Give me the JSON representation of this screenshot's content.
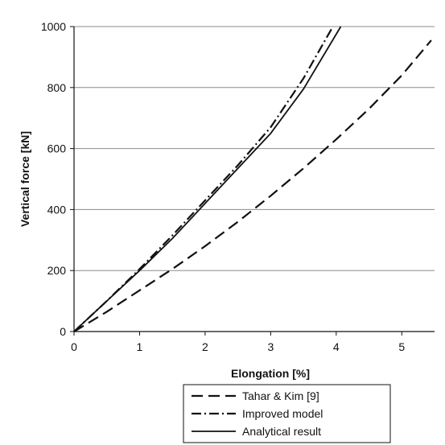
{
  "chart_data": {
    "type": "line",
    "title": "",
    "xlabel": "Elongation [%]",
    "ylabel": "Vertical force [kN]",
    "xlim": [
      0,
      5.5
    ],
    "ylim": [
      0,
      1000
    ],
    "xticks": [
      0,
      1,
      2,
      3,
      4,
      5
    ],
    "yticks": [
      0,
      200,
      400,
      600,
      800,
      1000
    ],
    "grid": "horizontal",
    "legend_position": "bottom-right, below plot",
    "series": [
      {
        "name": "Tahar & Kim [9]",
        "style": "dashed",
        "color": "#111111",
        "x": [
          0,
          0.5,
          1.0,
          1.5,
          2.0,
          2.5,
          3.0,
          3.5,
          4.0,
          4.5,
          5.0,
          5.45
        ],
        "y": [
          0,
          65,
          135,
          205,
          280,
          360,
          445,
          535,
          630,
          730,
          840,
          955
        ]
      },
      {
        "name": "Improved model",
        "style": "dash-dot",
        "color": "#111111",
        "x": [
          0,
          0.5,
          1.0,
          1.5,
          2.0,
          2.5,
          3.0,
          3.5,
          3.95
        ],
        "y": [
          0,
          100,
          205,
          315,
          430,
          545,
          670,
          830,
          1000
        ]
      },
      {
        "name": "Analytical result",
        "style": "solid",
        "color": "#111111",
        "x": [
          0,
          0.5,
          1.0,
          1.5,
          2.0,
          2.5,
          3.0,
          3.5,
          4.07
        ],
        "y": [
          0,
          100,
          200,
          305,
          420,
          535,
          650,
          795,
          1000
        ]
      }
    ]
  }
}
